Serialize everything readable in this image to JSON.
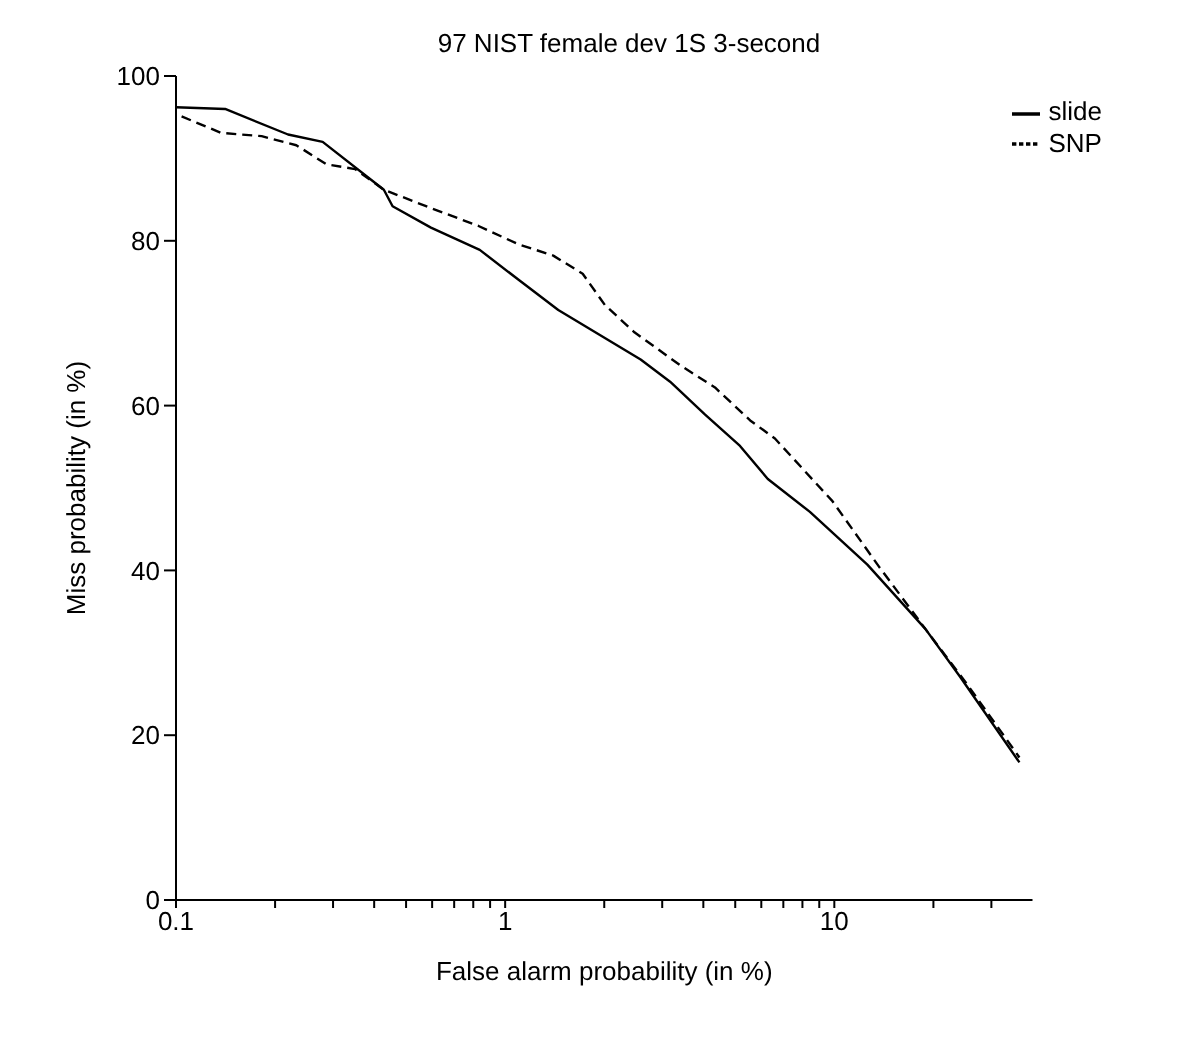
{
  "chart_data": {
    "type": "line",
    "title": "97 NIST female dev 1S 3-second",
    "xlabel": "False alarm probability (in %)",
    "ylabel": "Miss probability (in %)",
    "log": "x",
    "xlim": [
      0.1,
      40
    ],
    "xticks": [
      0.1,
      {
        "value": 0.2,
        "label": null
      },
      {
        "value": 0.3,
        "label": null
      },
      {
        "value": 0.4,
        "label": null
      },
      {
        "value": 0.5,
        "label": null
      },
      {
        "value": 0.6,
        "label": null
      },
      {
        "value": 0.7,
        "label": null
      },
      {
        "value": 0.8,
        "label": null
      },
      {
        "value": 0.9,
        "label": null
      },
      1,
      {
        "value": 2,
        "label": null
      },
      {
        "value": 3,
        "label": null
      },
      {
        "value": 4,
        "label": null
      },
      {
        "value": 5,
        "label": null
      },
      {
        "value": 6,
        "label": null
      },
      {
        "value": 7,
        "label": null
      },
      {
        "value": 8,
        "label": null
      },
      {
        "value": 9,
        "label": null
      },
      10,
      {
        "value": 20,
        "label": null
      },
      {
        "value": 30,
        "label": null
      }
    ],
    "ylim": [
      0,
      100
    ],
    "yticks": [
      0,
      20,
      40,
      60,
      80,
      100
    ],
    "grid": false,
    "legend": "top right",
    "marker": "none",
    "series": [
      {
        "name": "slide",
        "color": "#000000",
        "line_style": "solid",
        "x": [
          0.1,
          0.141,
          0.219,
          0.279,
          0.428,
          0.455,
          0.595,
          0.837,
          1.096,
          1.45,
          2.58,
          3.17,
          4.05,
          5.17,
          6.28,
          8.43,
          12.6,
          18.9,
          24.1,
          36.5
        ],
        "values": [
          96.2,
          96,
          92.9,
          92,
          86.2,
          84.2,
          81.6,
          78.9,
          75.3,
          71.6,
          65.6,
          62.9,
          58.9,
          55.1,
          51.1,
          47.1,
          40.7,
          32.9,
          27.1,
          16.7
        ]
      },
      {
        "name": "SNP",
        "color": "#000000",
        "line_style": "dashed",
        "x": [
          0.104,
          0.137,
          0.182,
          0.232,
          0.286,
          0.35,
          0.428,
          0.575,
          0.83,
          1.094,
          1.4,
          1.72,
          2.01,
          2.47,
          3.4,
          4.34,
          5.55,
          6.6,
          9.87,
          13.7,
          18.9,
          25.3,
          36.5
        ],
        "values": [
          95.1,
          93.1,
          92.7,
          91.6,
          89.3,
          88.7,
          86.2,
          84.2,
          81.8,
          79.6,
          78.2,
          76,
          72.2,
          68.9,
          64.9,
          62.2,
          58.2,
          56,
          48.4,
          40.4,
          32.9,
          26.2,
          17.3
        ]
      }
    ]
  }
}
